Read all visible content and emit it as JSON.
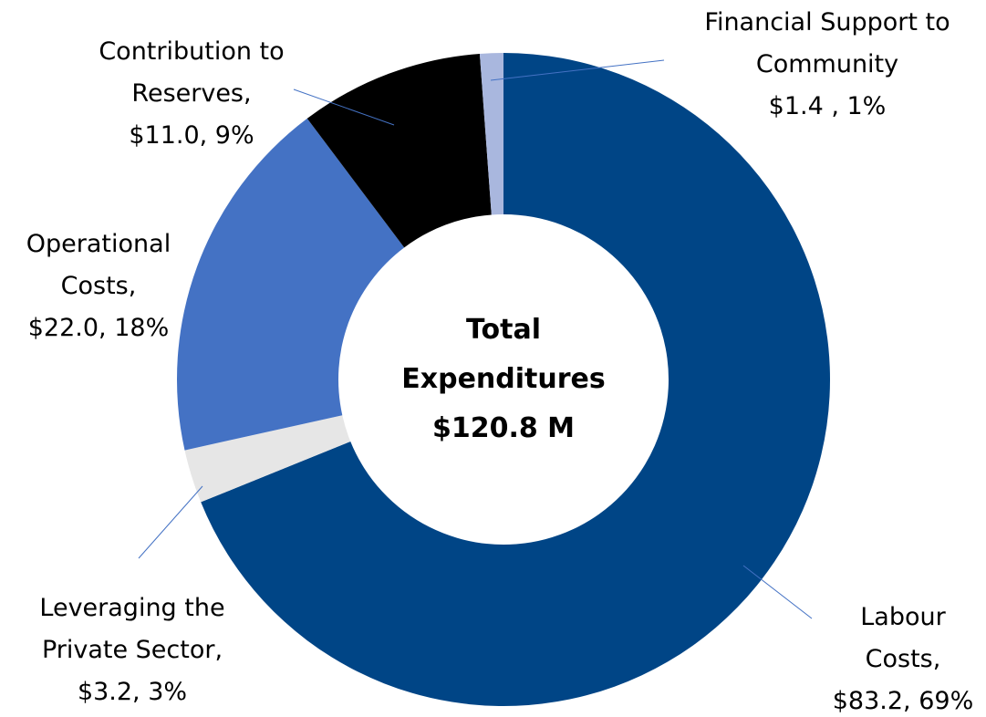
{
  "chart_data": {
    "type": "donut",
    "center_text": [
      "Total",
      "Expenditures",
      "$120.8 M"
    ],
    "categories": [
      "Labour Costs,",
      "Leveraging the Private Sector,",
      "Operational Costs,",
      "Contribution to Reserves,",
      "Financial Support to Community"
    ],
    "values": [
      83.2,
      3.2,
      22.0,
      11.0,
      1.4
    ],
    "value_labels": [
      "$83.2, 69%",
      "$3.2, 3%",
      "$22.0, 18%",
      "$11.0, 9%",
      "$1.4 , 1%"
    ],
    "colors": [
      "#004586",
      "#e6e6e6",
      "#4472c4",
      "#000000",
      "#a9b7de"
    ]
  }
}
